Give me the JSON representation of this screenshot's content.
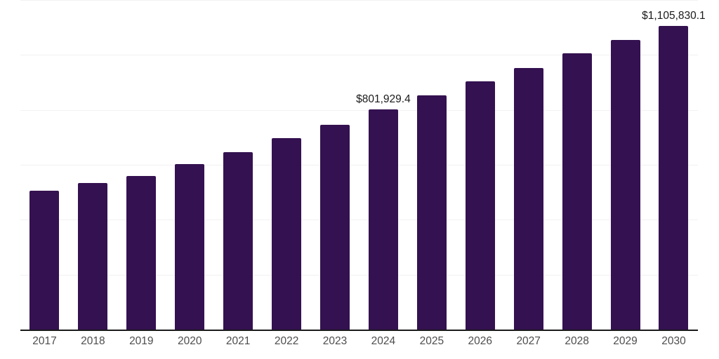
{
  "chart_data": {
    "type": "bar",
    "title": "",
    "xlabel": "",
    "ylabel": "",
    "categories": [
      "2017",
      "2018",
      "2019",
      "2020",
      "2021",
      "2022",
      "2023",
      "2024",
      "2025",
      "2026",
      "2027",
      "2028",
      "2029",
      "2030"
    ],
    "values": [
      506000,
      534000,
      558000,
      602000,
      647000,
      698000,
      745000,
      801929.4,
      853000,
      904000,
      953000,
      1006000,
      1054000,
      1105830.1
    ],
    "data_labels": [
      {
        "index": 7,
        "text": "$801,929.4"
      },
      {
        "index": 13,
        "text": "$1,105,830.1"
      }
    ],
    "ylim": [
      0,
      1200000
    ],
    "gridline_values": [
      200000,
      400000,
      600000,
      800000,
      1000000,
      1200000
    ],
    "grid": "horizontal",
    "legend": "none",
    "colors": {
      "bar": "#341150",
      "grid": "#f2f2f2",
      "axis_line": "#1a1a1a",
      "tick_label": "#4d4d4d",
      "data_label": "#1a1a1a",
      "background": "#ffffff"
    }
  }
}
